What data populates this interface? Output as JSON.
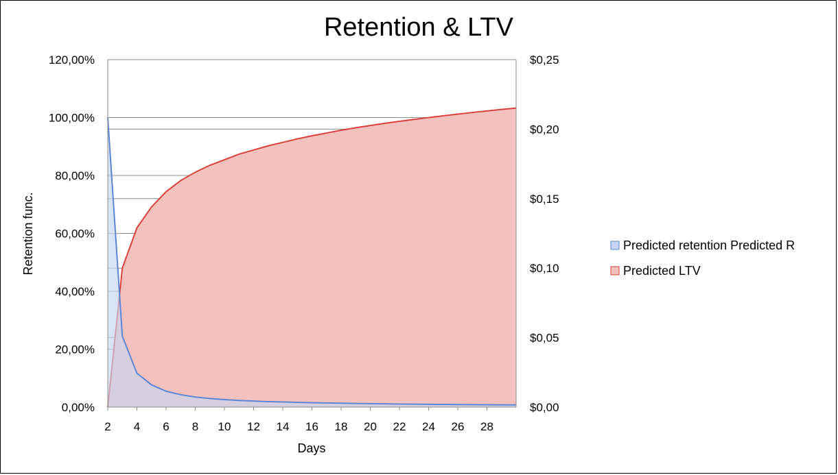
{
  "chart_data": {
    "type": "area",
    "title": "Retention & LTV",
    "xlabel": "Days",
    "ylabel": "Retention func.",
    "y2label": "",
    "x_ticks": [
      "2",
      "4",
      "6",
      "8",
      "10",
      "12",
      "14",
      "16",
      "18",
      "20",
      "22",
      "24",
      "26",
      "28"
    ],
    "xlim": [
      2,
      30
    ],
    "ylim": [
      0,
      1.2
    ],
    "y2lim": [
      0,
      0.25
    ],
    "y_ticks": [
      "0,00%",
      "20,00%",
      "40,00%",
      "60,00%",
      "80,00%",
      "100,00%",
      "120,00%"
    ],
    "y2_ticks": [
      "$0,00",
      "$0,05",
      "$0,10",
      "$0,15",
      "$0,20",
      "$0,25"
    ],
    "grid": "horizontal",
    "legend_position": "right",
    "series": [
      {
        "name": "Predicted retention Predicted R",
        "axis": "left",
        "color": "#5b86d6",
        "fill": "#c6d6f2",
        "x": [
          2,
          3,
          4,
          5,
          6,
          7,
          8,
          9,
          10,
          11,
          12,
          13,
          14,
          15,
          16,
          17,
          18,
          19,
          20,
          21,
          22,
          23,
          24,
          25,
          26,
          27,
          28,
          29,
          30
        ],
        "values": [
          1.0,
          0.245,
          0.117,
          0.077,
          0.055,
          0.043,
          0.035,
          0.03,
          0.026,
          0.023,
          0.021,
          0.019,
          0.018,
          0.0165,
          0.0155,
          0.0145,
          0.0135,
          0.0128,
          0.012,
          0.0114,
          0.0108,
          0.0103,
          0.0098,
          0.0094,
          0.009,
          0.0086,
          0.0083,
          0.008,
          0.0077
        ]
      },
      {
        "name": "Predicted LTV",
        "axis": "right",
        "color": "#d9413a",
        "fill": "#f4c2be",
        "x": [
          2,
          3,
          4,
          5,
          6,
          7,
          8,
          9,
          10,
          11,
          12,
          13,
          14,
          15,
          16,
          17,
          18,
          19,
          20,
          21,
          22,
          23,
          24,
          25,
          26,
          27,
          28,
          29,
          30
        ],
        "values": [
          0.0,
          0.1,
          0.129,
          0.144,
          0.155,
          0.163,
          0.169,
          0.174,
          0.178,
          0.182,
          0.185,
          0.188,
          0.1905,
          0.193,
          0.1952,
          0.1972,
          0.1992,
          0.201,
          0.2026,
          0.2042,
          0.2056,
          0.207,
          0.2083,
          0.2096,
          0.2108,
          0.212,
          0.2131,
          0.2142,
          0.2152
        ]
      }
    ]
  }
}
